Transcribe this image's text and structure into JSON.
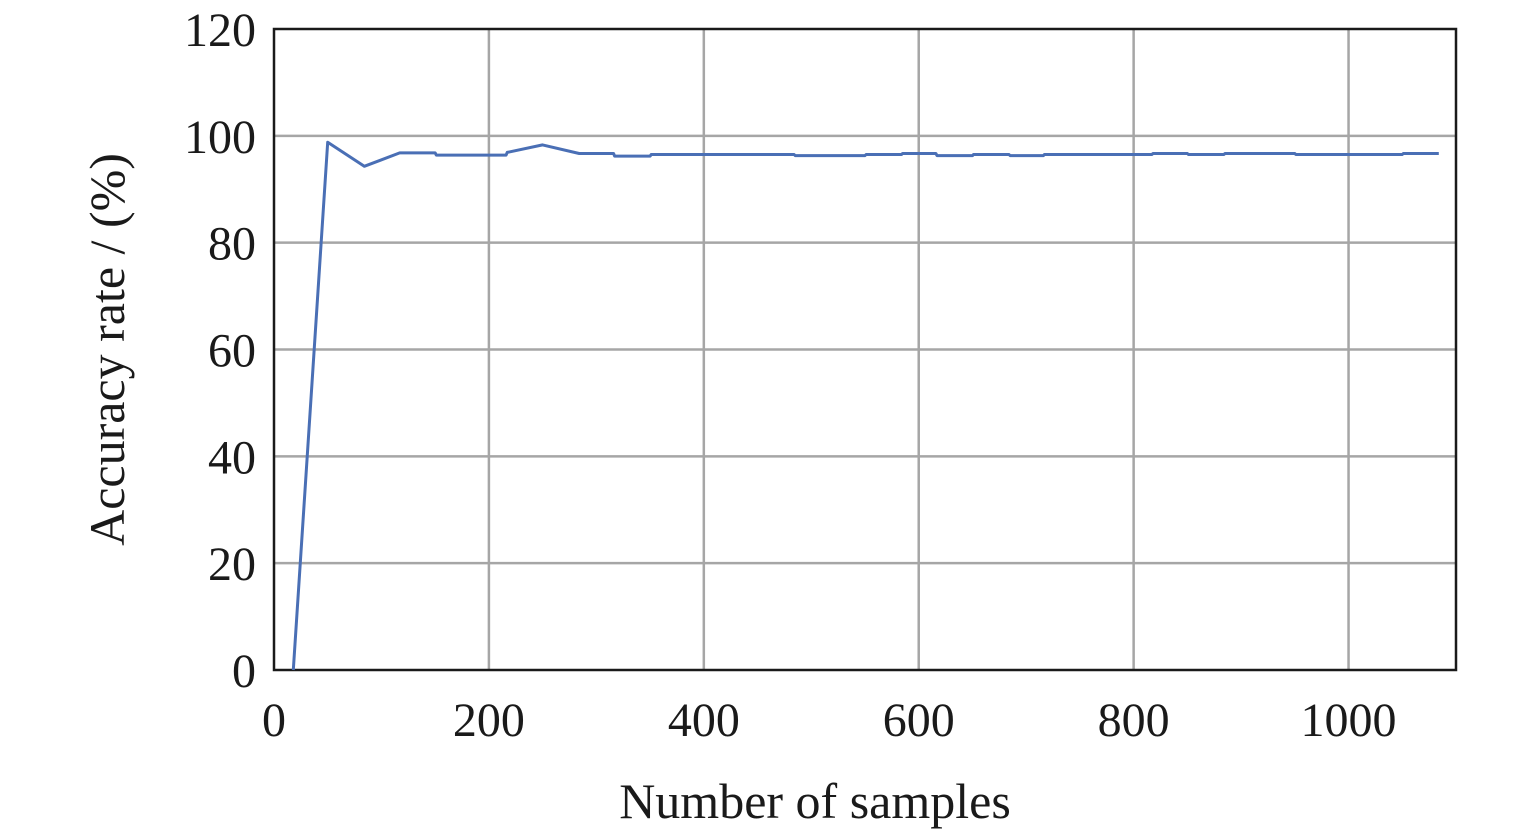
{
  "chart_data": {
    "type": "line",
    "title": "",
    "xlabel": "Number of samples",
    "ylabel": "Accuracy rate / (%)",
    "xlim": [
      0,
      1100
    ],
    "ylim": [
      0,
      120
    ],
    "xticks": [
      0,
      200,
      400,
      600,
      800,
      1000
    ],
    "yticks": [
      0,
      20,
      40,
      60,
      80,
      100,
      120
    ],
    "xtick_labels": [
      "0",
      "200",
      "400",
      "600",
      "800",
      "1000"
    ],
    "ytick_labels": [
      "0",
      "20",
      "40",
      "60",
      "80",
      "100",
      "120"
    ],
    "grid": true,
    "legend": "none",
    "line_color": "#4a6fb5",
    "series": [
      {
        "points": [
          [
            18,
            0
          ],
          [
            50,
            98.8
          ],
          [
            84,
            94.3
          ],
          [
            117,
            96.8
          ],
          [
            150,
            96.8
          ],
          [
            151,
            96.4
          ],
          [
            184,
            96.4
          ],
          [
            216,
            96.4
          ],
          [
            217,
            96.9
          ],
          [
            250,
            98.3
          ],
          [
            284,
            96.7
          ],
          [
            316,
            96.7
          ],
          [
            317,
            96.2
          ],
          [
            350,
            96.2
          ],
          [
            351,
            96.5
          ],
          [
            384,
            96.5
          ],
          [
            417,
            96.5
          ],
          [
            450,
            96.5
          ],
          [
            484,
            96.5
          ],
          [
            485,
            96.3
          ],
          [
            517,
            96.3
          ],
          [
            550,
            96.3
          ],
          [
            551,
            96.5
          ],
          [
            584,
            96.5
          ],
          [
            585,
            96.7
          ],
          [
            616,
            96.7
          ],
          [
            617,
            96.3
          ],
          [
            650,
            96.3
          ],
          [
            651,
            96.5
          ],
          [
            684,
            96.5
          ],
          [
            685,
            96.3
          ],
          [
            716,
            96.3
          ],
          [
            717,
            96.5
          ],
          [
            750,
            96.5
          ],
          [
            784,
            96.5
          ],
          [
            817,
            96.5
          ],
          [
            818,
            96.7
          ],
          [
            850,
            96.7
          ],
          [
            851,
            96.5
          ],
          [
            884,
            96.5
          ],
          [
            885,
            96.7
          ],
          [
            917,
            96.7
          ],
          [
            950,
            96.7
          ],
          [
            951,
            96.5
          ],
          [
            984,
            96.5
          ],
          [
            1017,
            96.5
          ],
          [
            1050,
            96.5
          ],
          [
            1051,
            96.7
          ],
          [
            1084,
            96.7
          ]
        ]
      }
    ]
  }
}
